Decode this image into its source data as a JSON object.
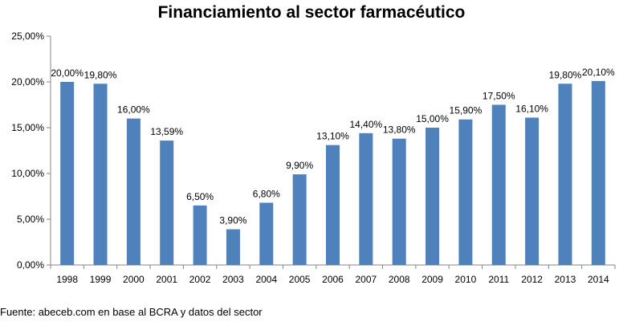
{
  "chart_data": {
    "type": "bar",
    "title": "Financiamiento al sector farmacéutico",
    "xlabel": "",
    "ylabel": "",
    "categories": [
      "1998",
      "1999",
      "2000",
      "2001",
      "2002",
      "2003",
      "2004",
      "2005",
      "2006",
      "2007",
      "2008",
      "2009",
      "2010",
      "2011",
      "2012",
      "2013",
      "2014"
    ],
    "values": [
      20.0,
      19.8,
      16.0,
      13.59,
      6.5,
      3.9,
      6.8,
      9.9,
      13.1,
      14.4,
      13.8,
      15.0,
      15.9,
      17.5,
      16.1,
      19.8,
      20.1
    ],
    "value_labels": [
      "20,00%",
      "19,80%",
      "16,00%",
      "13,59%",
      "6,50%",
      "3,90%",
      "6,80%",
      "9,90%",
      "13,10%",
      "14,40%",
      "13,80%",
      "15,00%",
      "15,90%",
      "17,50%",
      "16,10%",
      "19,80%",
      "20,10%"
    ],
    "yticks": [
      0,
      5,
      10,
      15,
      20,
      25
    ],
    "ytick_labels": [
      "0,00%",
      "5,00%",
      "10,00%",
      "15,00%",
      "20,00%",
      "25,00%"
    ],
    "ylim": [
      0,
      25
    ],
    "grid": false,
    "legend": "none",
    "bar_color": "#4f81bd",
    "axis_color": "#868686"
  },
  "source": "Fuente: abeceb.com  en base al BCRA y datos del sector"
}
